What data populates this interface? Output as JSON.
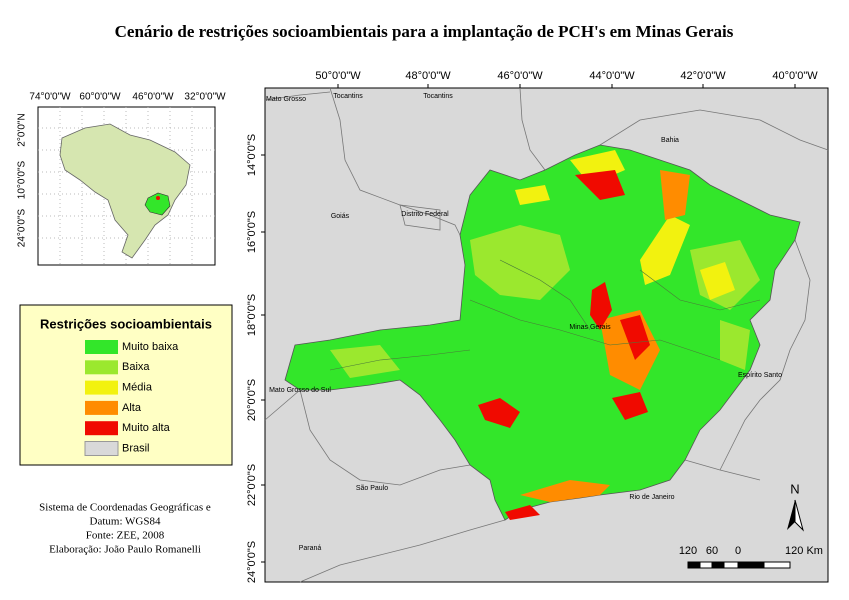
{
  "title": "Cenário de restrições socioambientais  para a implantação de PCH's em Minas Gerais",
  "inset": {
    "lon_labels": [
      "74°0'0\"W",
      "60°0'0\"W",
      "46°0'0\"W",
      "32°0'0\"W"
    ],
    "lat_labels": [
      "2°0'0\"N",
      "10°0'0\"S",
      "24°0'0\"S"
    ]
  },
  "legend": {
    "title": "Restrições socioambientais",
    "items": [
      {
        "label": "Muito baixa",
        "color": "#33e62a"
      },
      {
        "label": "Baixa",
        "color": "#9be82e"
      },
      {
        "label": "Média",
        "color": "#f2f20f"
      },
      {
        "label": "Alta",
        "color": "#ff8c00"
      },
      {
        "label": "Muito alta",
        "color": "#f00a00"
      },
      {
        "label": "Brasil",
        "color": "#d9d9d9"
      }
    ]
  },
  "credits": [
    "Sistema de Coordenadas Geográficas e",
    "Datum: WGS84",
    "Fonte: ZEE, 2008",
    "Elaboração: João Paulo Romanelli"
  ],
  "map": {
    "lon_labels": [
      "50°0'0\"W",
      "48°0'0\"W",
      "46°0'0\"W",
      "44°0'0\"W",
      "42°0'0\"W",
      "40°0'0\"W"
    ],
    "lat_labels": [
      "14°0'0\"S",
      "16°0'0\"S",
      "18°0'0\"S",
      "20°0'0\"S",
      "22°0'0\"S",
      "24°0'0\"S"
    ],
    "places": [
      "Mato Grosso",
      "Tocantins",
      "Tocantins",
      "Bahia",
      "Goiás",
      "Distrito Federal",
      "Minas Gerais",
      "Mato Grosso do Sul",
      "Espírito Santo",
      "São Paulo",
      "Rio de Janeiro",
      "Paraná"
    ],
    "scale_labels": [
      "120",
      "60",
      "0",
      "120 Km"
    ],
    "north": "N"
  }
}
